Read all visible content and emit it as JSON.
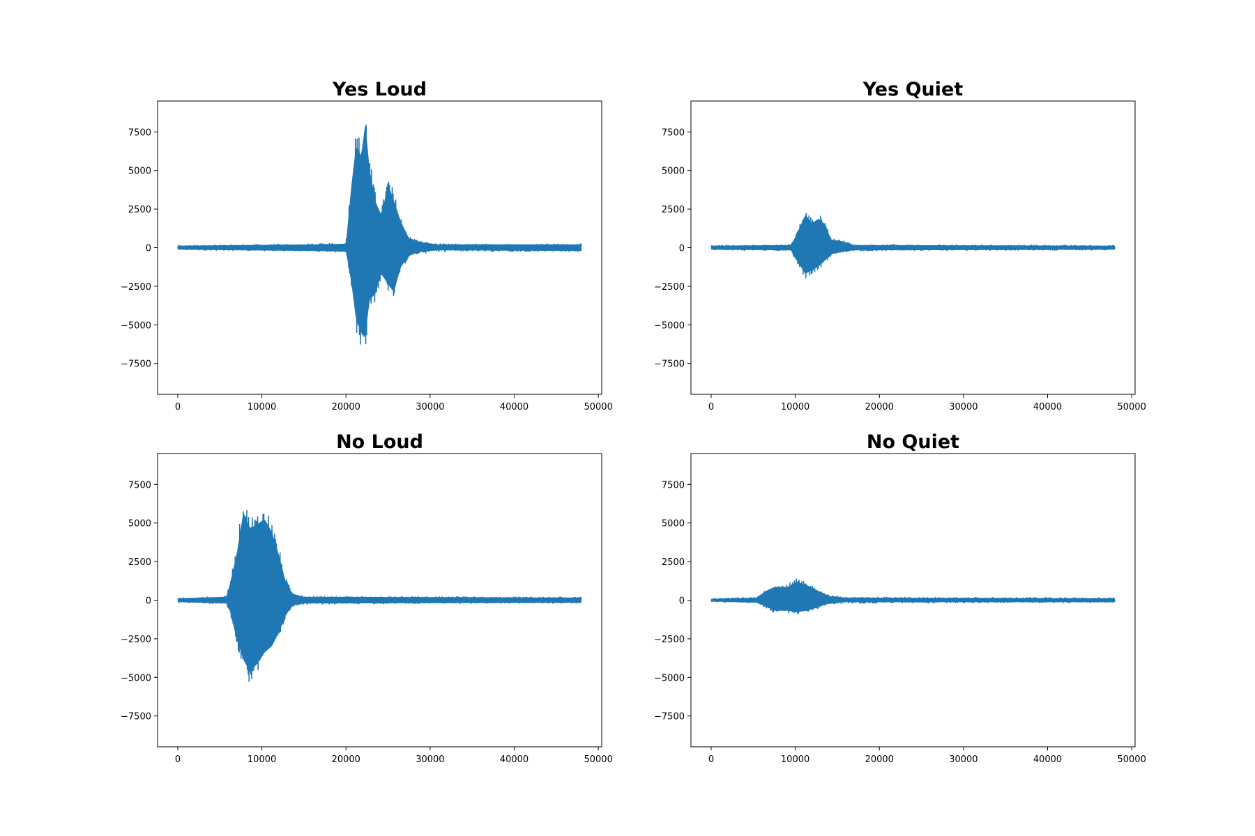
{
  "chart_data": [
    {
      "type": "line",
      "title": "Yes Loud",
      "xlabel": "",
      "ylabel": "",
      "xlim": [
        -2400,
        50400
      ],
      "ylim": [
        -9500,
        9500
      ],
      "x_ticks": [
        0,
        10000,
        20000,
        30000,
        40000,
        50000
      ],
      "y_ticks": [
        -7500,
        -5000,
        -2500,
        0,
        2500,
        5000,
        7500
      ],
      "grid": false,
      "color": "#1f77b4",
      "x_range": [
        0,
        48000
      ],
      "baseline_noise": 180,
      "envelope": [
        {
          "x": 0,
          "upper": 150,
          "lower": -150
        },
        {
          "x": 16000,
          "upper": 250,
          "lower": -250
        },
        {
          "x": 20000,
          "upper": 300,
          "lower": -300
        },
        {
          "x": 20600,
          "upper": 4500,
          "lower": -2500
        },
        {
          "x": 21200,
          "upper": 7800,
          "lower": -5500
        },
        {
          "x": 21800,
          "upper": 7000,
          "lower": -6500
        },
        {
          "x": 22300,
          "upper": 9500,
          "lower": -6800
        },
        {
          "x": 22800,
          "upper": 6000,
          "lower": -4000
        },
        {
          "x": 23500,
          "upper": 3500,
          "lower": -3500
        },
        {
          "x": 24200,
          "upper": 2500,
          "lower": -2000
        },
        {
          "x": 25000,
          "upper": 4800,
          "lower": -2800
        },
        {
          "x": 25700,
          "upper": 3600,
          "lower": -3400
        },
        {
          "x": 26500,
          "upper": 2000,
          "lower": -1500
        },
        {
          "x": 27500,
          "upper": 700,
          "lower": -600
        },
        {
          "x": 29000,
          "upper": 400,
          "lower": -300
        },
        {
          "x": 31000,
          "upper": 250,
          "lower": -200
        },
        {
          "x": 48000,
          "upper": 250,
          "lower": -250
        }
      ]
    },
    {
      "type": "line",
      "title": "Yes Quiet",
      "xlabel": "",
      "ylabel": "",
      "xlim": [
        -2400,
        50400
      ],
      "ylim": [
        -9500,
        9500
      ],
      "x_ticks": [
        0,
        10000,
        20000,
        30000,
        40000,
        50000
      ],
      "y_ticks": [
        -7500,
        -5000,
        -2500,
        0,
        2500,
        5000,
        7500
      ],
      "grid": false,
      "color": "#1f77b4",
      "x_range": [
        0,
        48000
      ],
      "baseline_noise": 140,
      "envelope": [
        {
          "x": 0,
          "upper": 150,
          "lower": -150
        },
        {
          "x": 9500,
          "upper": 200,
          "lower": -200
        },
        {
          "x": 10000,
          "upper": 800,
          "lower": -800
        },
        {
          "x": 10700,
          "upper": 1800,
          "lower": -1500
        },
        {
          "x": 11200,
          "upper": 2500,
          "lower": -2000
        },
        {
          "x": 12000,
          "upper": 1900,
          "lower": -1700
        },
        {
          "x": 12800,
          "upper": 2200,
          "lower": -1400
        },
        {
          "x": 13500,
          "upper": 1800,
          "lower": -1000
        },
        {
          "x": 14300,
          "upper": 600,
          "lower": -500
        },
        {
          "x": 15500,
          "upper": 500,
          "lower": -300
        },
        {
          "x": 17000,
          "upper": 200,
          "lower": -200
        },
        {
          "x": 48000,
          "upper": 150,
          "lower": -150
        }
      ]
    },
    {
      "type": "line",
      "title": "No Loud",
      "xlabel": "",
      "ylabel": "",
      "xlim": [
        -2400,
        50400
      ],
      "ylim": [
        -9500,
        9500
      ],
      "x_ticks": [
        0,
        10000,
        20000,
        30000,
        40000,
        50000
      ],
      "y_ticks": [
        -7500,
        -5000,
        -2500,
        0,
        2500,
        5000,
        7500
      ],
      "grid": false,
      "color": "#1f77b4",
      "x_range": [
        0,
        48000
      ],
      "baseline_noise": 170,
      "envelope": [
        {
          "x": 0,
          "upper": 150,
          "lower": -150
        },
        {
          "x": 5800,
          "upper": 250,
          "lower": -250
        },
        {
          "x": 6300,
          "upper": 1500,
          "lower": -1000
        },
        {
          "x": 7000,
          "upper": 3500,
          "lower": -3000
        },
        {
          "x": 7800,
          "upper": 6700,
          "lower": -4500
        },
        {
          "x": 8600,
          "upper": 5500,
          "lower": -5500
        },
        {
          "x": 9500,
          "upper": 5800,
          "lower": -4800
        },
        {
          "x": 10300,
          "upper": 6200,
          "lower": -4000
        },
        {
          "x": 11200,
          "upper": 5200,
          "lower": -3500
        },
        {
          "x": 12000,
          "upper": 3500,
          "lower": -2500
        },
        {
          "x": 12800,
          "upper": 1500,
          "lower": -1200
        },
        {
          "x": 13600,
          "upper": 500,
          "lower": -400
        },
        {
          "x": 15000,
          "upper": 250,
          "lower": -250
        },
        {
          "x": 48000,
          "upper": 200,
          "lower": -200
        }
      ]
    },
    {
      "type": "line",
      "title": "No Quiet",
      "xlabel": "",
      "ylabel": "",
      "xlim": [
        -2400,
        50400
      ],
      "ylim": [
        -9500,
        9500
      ],
      "x_ticks": [
        0,
        10000,
        20000,
        30000,
        40000,
        50000
      ],
      "y_ticks": [
        -7500,
        -5000,
        -2500,
        0,
        2500,
        5000,
        7500
      ],
      "grid": false,
      "color": "#1f77b4",
      "x_range": [
        0,
        48000
      ],
      "baseline_noise": 120,
      "envelope": [
        {
          "x": 0,
          "upper": 100,
          "lower": -100
        },
        {
          "x": 5500,
          "upper": 200,
          "lower": -200
        },
        {
          "x": 6500,
          "upper": 700,
          "lower": -500
        },
        {
          "x": 7500,
          "upper": 1000,
          "lower": -800
        },
        {
          "x": 9000,
          "upper": 1000,
          "lower": -800
        },
        {
          "x": 10200,
          "upper": 1400,
          "lower": -900
        },
        {
          "x": 11500,
          "upper": 1100,
          "lower": -800
        },
        {
          "x": 12800,
          "upper": 700,
          "lower": -500
        },
        {
          "x": 14000,
          "upper": 300,
          "lower": -250
        },
        {
          "x": 16000,
          "upper": 200,
          "lower": -150
        },
        {
          "x": 48000,
          "upper": 150,
          "lower": -150
        }
      ]
    }
  ]
}
